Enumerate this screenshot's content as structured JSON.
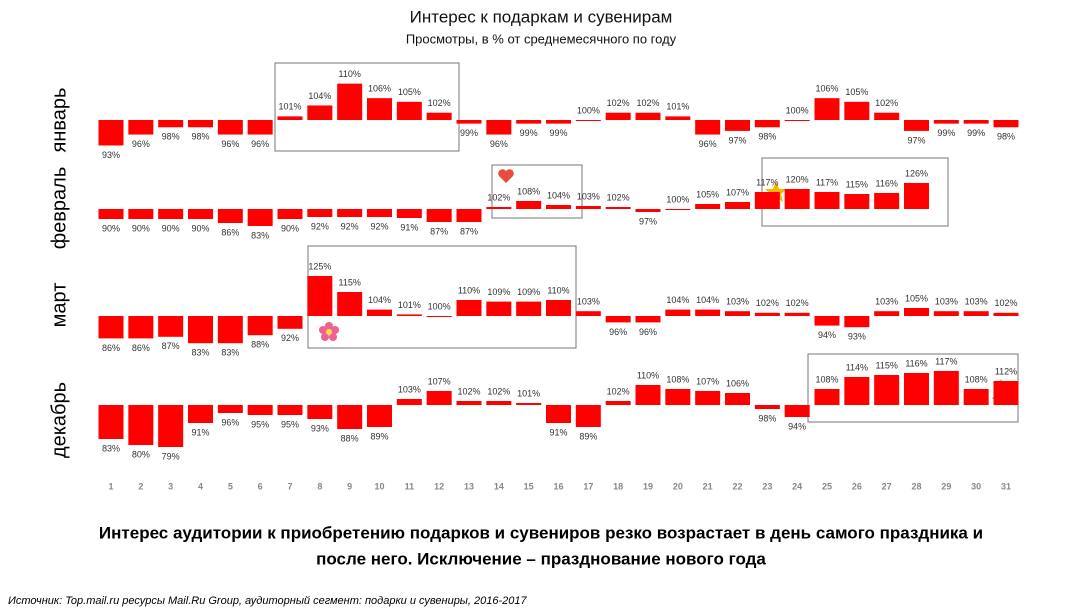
{
  "title": "Интерес к подаркам и сувенирам",
  "subtitle": "Просмотры, в % от среднемесячного по году",
  "conclusion": [
    "Интерес аудитории к приобретению подарков и сувениров резко возрастает в день самого праздника и",
    "после него. Исключение – празднование нового года"
  ],
  "source": "Источник: Top.mail.ru ресурсы Mail.Ru Group, аудиторный сегмент: подарки и сувениры, 2016-2017",
  "categories": [
    1,
    2,
    3,
    4,
    5,
    6,
    7,
    8,
    9,
    10,
    11,
    12,
    13,
    14,
    15,
    16,
    17,
    18,
    19,
    20,
    21,
    22,
    23,
    24,
    25,
    26,
    27,
    28,
    29,
    30,
    31
  ],
  "chart_data": [
    {
      "type": "bar",
      "title": "январь",
      "color": "#ff0000",
      "bar_base": 100,
      "ylim": [
        89,
        111
      ],
      "values": [
        93,
        96,
        98,
        98,
        96,
        96,
        101,
        104,
        110,
        106,
        105,
        102,
        99,
        96,
        99,
        99,
        100,
        102,
        102,
        101,
        96,
        97,
        98,
        100,
        106,
        105,
        102,
        97,
        99,
        99,
        98
      ],
      "value_labels": [
        "93%",
        "96%",
        "98%",
        "98%",
        "96%",
        "96%",
        "101%",
        "104%",
        "110%",
        "106%",
        "105%",
        "102%",
        "99%",
        "96%",
        "99%",
        "99%",
        "100%",
        "102%",
        "102%",
        "101%",
        "96%",
        "97%",
        "98%",
        "100%",
        "106%",
        "105%",
        "102%",
        "97%",
        "99%",
        "99%",
        "98%"
      ]
    },
    {
      "type": "bar",
      "title": "февраль",
      "color": "#ff0000",
      "bar_base": 100,
      "ylim": [
        60,
        140
      ],
      "values": [
        90,
        90,
        90,
        90,
        86,
        83,
        90,
        92,
        92,
        92,
        91,
        87,
        87,
        102,
        108,
        104,
        103,
        102,
        97,
        100,
        105,
        107,
        117,
        120,
        117,
        115,
        116,
        126,
        null,
        null,
        null
      ],
      "value_labels": [
        "90%",
        "90%",
        "90%",
        "90%",
        "86%",
        "83%",
        "90%",
        "92%",
        "92%",
        "92%",
        "91%",
        "87%",
        "87%",
        "102%",
        "108%",
        "104%",
        "103%",
        "102%",
        "97%",
        "100%",
        "105%",
        "107%",
        "117%",
        "120%",
        "117%",
        "115%",
        "116%",
        "126%",
        null,
        null,
        null
      ]
    },
    {
      "type": "bar",
      "title": "март",
      "color": "#ff0000",
      "bar_base": 100,
      "ylim": [
        75,
        125
      ],
      "values": [
        86,
        86,
        87,
        83,
        83,
        88,
        92,
        125,
        115,
        104,
        101,
        100,
        110,
        109,
        109,
        110,
        103,
        96,
        96,
        104,
        104,
        103,
        102,
        102,
        94,
        93,
        103,
        105,
        103,
        103,
        102
      ],
      "value_labels": [
        "86%",
        "86%",
        "87%",
        "83%",
        "83%",
        "88%",
        "92%",
        "125%",
        "115%",
        "104%",
        "101%",
        "100%",
        "110%",
        "109%",
        "109%",
        "110%",
        "103%",
        "96%",
        "96%",
        "104%",
        "104%",
        "103%",
        "102%",
        "102%",
        "94%",
        "93%",
        "103%",
        "105%",
        "103%",
        "103%",
        "102%"
      ]
    },
    {
      "type": "bar",
      "title": "декабрь",
      "color": "#ff0000",
      "bar_base": 100,
      "ylim": [
        80,
        120
      ],
      "values": [
        83,
        80,
        79,
        91,
        96,
        95,
        95,
        93,
        88,
        89,
        103,
        107,
        102,
        102,
        101,
        91,
        89,
        102,
        110,
        108,
        107,
        106,
        98,
        94,
        108,
        114,
        115,
        116,
        117,
        108,
        112
      ],
      "value_labels": [
        "83%",
        "80%",
        "79%",
        "91%",
        "96%",
        "95%",
        "95%",
        "93%",
        "88%",
        "89%",
        "103%",
        "107%",
        "102%",
        "102%",
        "101%",
        "91%",
        "89%",
        "102%",
        "110%",
        "108%",
        "107%",
        "106%",
        "98%",
        "94%",
        "108%",
        "114%",
        "115%",
        "116%",
        "117%",
        "108%",
        "112%"
      ]
    }
  ]
}
